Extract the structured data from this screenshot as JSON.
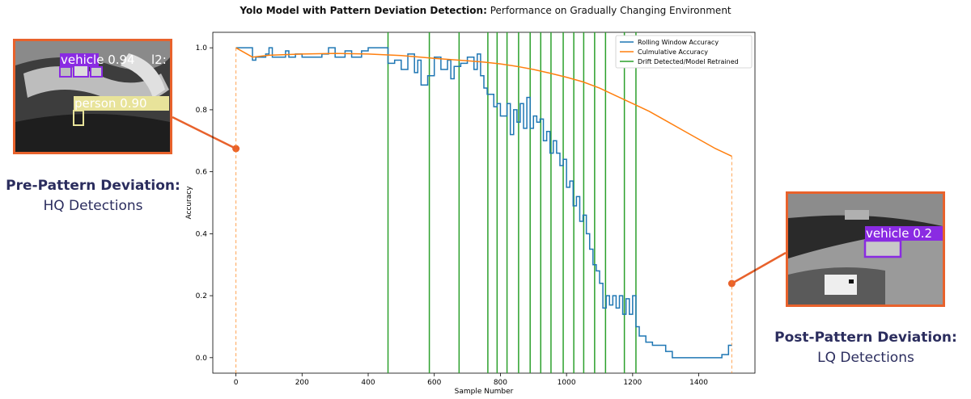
{
  "figure_title": {
    "bold": "Yolo Model with Pattern Deviation Detection:",
    "rest": " Performance on Gradually Changing Environment"
  },
  "callouts": {
    "pre": {
      "title": "Pre-Pattern Deviation:",
      "subtitle": "HQ Detections",
      "detections": [
        {
          "label": "vehicle 0.94",
          "trail": "l2:"
        },
        {
          "label": "person 0.90"
        }
      ]
    },
    "post": {
      "title": "Post-Pattern Deviation:",
      "subtitle": "LQ Detections",
      "detections": [
        {
          "label": "vehicle 0.2"
        }
      ]
    }
  },
  "colors": {
    "rolling": "#1f77b4",
    "cumulative": "#ff7f0e",
    "drift": "#2ca02c",
    "callout": "#e8622c",
    "callout_text": "#2b2d5e",
    "vehicle_box": "#8a2be2",
    "person_box": "#e8e39a"
  },
  "chart_data": {
    "type": "line",
    "title": "",
    "xlabel": "Sample Number",
    "ylabel": "Accuracy",
    "xlim": [
      -70,
      1570
    ],
    "ylim": [
      -0.05,
      1.05
    ],
    "xticks": [
      0,
      200,
      400,
      600,
      800,
      1000,
      1200,
      1400
    ],
    "yticks": [
      0.0,
      0.2,
      0.4,
      0.6,
      0.8,
      1.0
    ],
    "ytick_labels": [
      "0.0",
      "0.2",
      "0.4",
      "0.6",
      "0.8",
      "1.0"
    ],
    "grid": false,
    "legend_position": "top-right",
    "series": [
      {
        "name": "Rolling Window Accuracy",
        "x": [
          0,
          20,
          50,
          60,
          90,
          100,
          110,
          150,
          160,
          180,
          200,
          260,
          280,
          300,
          330,
          350,
          380,
          400,
          460,
          480,
          500,
          520,
          540,
          550,
          560,
          580,
          600,
          620,
          640,
          650,
          660,
          680,
          700,
          720,
          730,
          740,
          750,
          760,
          780,
          790,
          800,
          820,
          830,
          840,
          850,
          860,
          870,
          880,
          890,
          900,
          910,
          920,
          930,
          940,
          950,
          960,
          970,
          980,
          990,
          1000,
          1010,
          1020,
          1030,
          1040,
          1050,
          1060,
          1070,
          1080,
          1090,
          1100,
          1110,
          1120,
          1130,
          1140,
          1150,
          1160,
          1170,
          1180,
          1190,
          1200,
          1210,
          1220,
          1240,
          1260,
          1300,
          1320,
          1340,
          1360,
          1380,
          1400,
          1450,
          1470,
          1490,
          1500
        ],
        "y": [
          1.0,
          1.0,
          0.96,
          0.97,
          0.98,
          1.0,
          0.97,
          0.99,
          0.97,
          0.98,
          0.97,
          0.98,
          1.0,
          0.97,
          0.99,
          0.97,
          0.99,
          1.0,
          0.95,
          0.96,
          0.93,
          0.98,
          0.92,
          0.96,
          0.88,
          0.91,
          0.97,
          0.93,
          0.96,
          0.9,
          0.94,
          0.95,
          0.97,
          0.93,
          0.98,
          0.91,
          0.87,
          0.85,
          0.81,
          0.82,
          0.78,
          0.82,
          0.72,
          0.8,
          0.76,
          0.82,
          0.74,
          0.84,
          0.74,
          0.78,
          0.76,
          0.77,
          0.7,
          0.73,
          0.66,
          0.7,
          0.66,
          0.62,
          0.64,
          0.55,
          0.57,
          0.49,
          0.52,
          0.44,
          0.46,
          0.4,
          0.35,
          0.3,
          0.28,
          0.24,
          0.16,
          0.2,
          0.17,
          0.2,
          0.16,
          0.2,
          0.14,
          0.19,
          0.14,
          0.2,
          0.1,
          0.07,
          0.05,
          0.04,
          0.02,
          0.0,
          0.0,
          0.0,
          0.0,
          0.0,
          0.0,
          0.01,
          0.04,
          0.04
        ]
      },
      {
        "name": "Culmulative Accuracy",
        "x": [
          0,
          50,
          100,
          200,
          300,
          400,
          500,
          600,
          650,
          700,
          750,
          800,
          850,
          900,
          950,
          1000,
          1050,
          1100,
          1150,
          1200,
          1250,
          1300,
          1350,
          1400,
          1450,
          1500
        ],
        "y": [
          1.0,
          0.97,
          0.976,
          0.98,
          0.982,
          0.98,
          0.975,
          0.966,
          0.962,
          0.958,
          0.954,
          0.948,
          0.94,
          0.93,
          0.918,
          0.905,
          0.89,
          0.87,
          0.845,
          0.82,
          0.795,
          0.765,
          0.735,
          0.705,
          0.675,
          0.65
        ]
      },
      {
        "name": "Drift Detected/Model Retrained",
        "vertical_lines_at": [
          460,
          585,
          675,
          762,
          790,
          820,
          855,
          890,
          922,
          953,
          990,
          1022,
          1052,
          1085,
          1118,
          1175,
          1210
        ]
      }
    ],
    "annotations": [
      {
        "type": "dashed_vertical",
        "x": 0
      },
      {
        "type": "dashed_vertical",
        "x": 1500
      }
    ]
  }
}
